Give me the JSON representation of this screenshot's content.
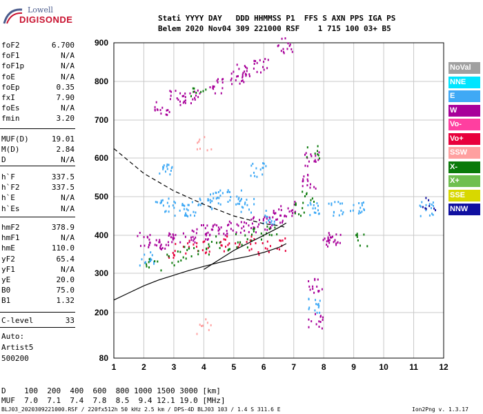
{
  "logo": {
    "top": "Lowell",
    "bottom": "DIGISONDE"
  },
  "header": {
    "line1": "Stati YYYY DAY   DDD HHMMSS P1  FFS S AXN PPS IGA PS",
    "line2": "Belem 2020 Nov04 309 221000 RSF    1 715 100 03+ B5"
  },
  "params": {
    "group1": [
      {
        "name": "foF2",
        "value": "6.700"
      },
      {
        "name": "foF1",
        "value": "N/A"
      },
      {
        "name": "foF1p",
        "value": "N/A"
      },
      {
        "name": "foE",
        "value": "N/A"
      },
      {
        "name": "foEp",
        "value": "0.35"
      },
      {
        "name": "fxI",
        "value": "7.90"
      },
      {
        "name": "foEs",
        "value": "N/A"
      },
      {
        "name": "fmin",
        "value": "3.20"
      }
    ],
    "group2": [
      {
        "name": "MUF(D)",
        "value": "19.01"
      },
      {
        "name": "M(D)",
        "value": "2.84"
      },
      {
        "name": "D",
        "value": "N/A"
      }
    ],
    "group3": [
      {
        "name": "h`F",
        "value": "337.5"
      },
      {
        "name": "h`F2",
        "value": "337.5"
      },
      {
        "name": "h`E",
        "value": "N/A"
      },
      {
        "name": "h`Es",
        "value": "N/A"
      }
    ],
    "group4": [
      {
        "name": "hmF2",
        "value": "378.9"
      },
      {
        "name": "hmF1",
        "value": "N/A"
      },
      {
        "name": "hmE",
        "value": "110.0"
      },
      {
        "name": "yF2",
        "value": "65.4"
      },
      {
        "name": "yF1",
        "value": "N/A"
      },
      {
        "name": "yE",
        "value": "20.0"
      },
      {
        "name": "B0",
        "value": "75.0"
      },
      {
        "name": "B1",
        "value": "1.32"
      }
    ],
    "clevel": {
      "name": "C-level",
      "value": "33"
    },
    "auto": [
      "Auto:",
      "Artist5",
      "500200"
    ]
  },
  "legend": [
    {
      "label": "NoVal",
      "bg": "#a0a0a0",
      "fg": "#ffffff"
    },
    {
      "label": "NNE",
      "bg": "#00e5ff",
      "fg": "#ffffff"
    },
    {
      "label": "E",
      "bg": "#3fa9f5",
      "fg": "#ffffff"
    },
    {
      "label": "W",
      "bg": "#a8009a",
      "fg": "#ffffff"
    },
    {
      "label": "Vo-",
      "bg": "#ff3fa0",
      "fg": "#ffffff"
    },
    {
      "label": "Vo+",
      "bg": "#e8003c",
      "fg": "#ffffff"
    },
    {
      "label": "SSW",
      "bg": "#ffa0a0",
      "fg": "#ffffff"
    },
    {
      "label": "X-",
      "bg": "#0a7a0a",
      "fg": "#ffffff"
    },
    {
      "label": "X+",
      "bg": "#6fbf4f",
      "fg": "#ffffff"
    },
    {
      "label": "SSE",
      "bg": "#d8d800",
      "fg": "#ffffff"
    },
    {
      "label": "NNW",
      "bg": "#1010a0",
      "fg": "#ffffff"
    }
  ],
  "chart_data": {
    "type": "scatter",
    "xlim": [
      1,
      12
    ],
    "ylim": [
      80,
      900
    ],
    "x_ticks": [
      1,
      2,
      3,
      4,
      5,
      6,
      7,
      8,
      9,
      10,
      11,
      12
    ],
    "y_ticks": [
      80,
      200,
      300,
      400,
      500,
      600,
      700,
      800,
      900
    ],
    "grid": true,
    "series": [
      {
        "name": "E",
        "color": "#3fa9f5",
        "points": [
          [
            2.1,
            340
          ],
          [
            2.6,
            480
          ],
          [
            2.7,
            575
          ],
          [
            3.2,
            470
          ],
          [
            3.6,
            470
          ],
          [
            4.0,
            490
          ],
          [
            4.4,
            500
          ],
          [
            5.0,
            500
          ],
          [
            5.4,
            480
          ],
          [
            6.1,
            450
          ],
          [
            7.6,
            470
          ],
          [
            8.4,
            470
          ],
          [
            9.1,
            470
          ],
          [
            11.4,
            470
          ],
          [
            7.7,
            220
          ],
          [
            5.8,
            570
          ]
        ]
      },
      {
        "name": "W",
        "color": "#a8009a",
        "points": [
          [
            2.0,
            390
          ],
          [
            2.5,
            380
          ],
          [
            3.0,
            390
          ],
          [
            3.5,
            400
          ],
          [
            4.0,
            410
          ],
          [
            4.5,
            420
          ],
          [
            5.0,
            420
          ],
          [
            5.5,
            430
          ],
          [
            6.0,
            430
          ],
          [
            6.5,
            450
          ],
          [
            6.8,
            470
          ],
          [
            7.5,
            540
          ],
          [
            7.6,
            600
          ],
          [
            8.3,
            390
          ],
          [
            2.6,
            730
          ],
          [
            3.1,
            760
          ],
          [
            3.6,
            760
          ],
          [
            4.4,
            790
          ],
          [
            5.1,
            810
          ],
          [
            5.3,
            830
          ],
          [
            5.9,
            845
          ],
          [
            6.7,
            895
          ],
          [
            7.7,
            270
          ],
          [
            7.7,
            180
          ],
          [
            8.2,
            390
          ]
        ]
      },
      {
        "name": "Vo+",
        "color": "#e8003c",
        "points": [
          [
            3.0,
            360
          ],
          [
            3.5,
            370
          ],
          [
            4.0,
            375
          ],
          [
            4.5,
            380
          ],
          [
            5.0,
            385
          ],
          [
            5.5,
            380
          ],
          [
            6.0,
            370
          ],
          [
            6.5,
            380
          ]
        ]
      },
      {
        "name": "SSW",
        "color": "#ffa0a0",
        "points": [
          [
            4.0,
            640
          ],
          [
            4.0,
            165
          ]
        ]
      },
      {
        "name": "X-",
        "color": "#0a7a0a",
        "points": [
          [
            2.3,
            330
          ],
          [
            3.0,
            340
          ],
          [
            3.5,
            360
          ],
          [
            4.0,
            370
          ],
          [
            4.6,
            380
          ],
          [
            5.2,
            390
          ],
          [
            5.8,
            400
          ],
          [
            6.3,
            410
          ],
          [
            7.2,
            470
          ],
          [
            7.5,
            500
          ],
          [
            7.6,
            620
          ],
          [
            9.2,
            390
          ],
          [
            3.8,
            775
          ]
        ]
      },
      {
        "name": "NNW",
        "color": "#1010a0",
        "points": [
          [
            11.5,
            480
          ]
        ]
      }
    ],
    "curves": [
      {
        "style": "dashed",
        "points": [
          [
            1,
            625
          ],
          [
            2,
            560
          ],
          [
            3,
            515
          ],
          [
            4,
            480
          ],
          [
            5,
            450
          ],
          [
            5.5,
            440
          ],
          [
            6,
            430
          ],
          [
            6.5,
            425
          ],
          [
            6.75,
            420
          ]
        ]
      },
      {
        "style": "solid",
        "points": [
          [
            1,
            232
          ],
          [
            1.5,
            250
          ],
          [
            2,
            268
          ],
          [
            2.5,
            283
          ],
          [
            3,
            295
          ],
          [
            3.5,
            307
          ],
          [
            4,
            318
          ],
          [
            4.5,
            328
          ],
          [
            5,
            337
          ],
          [
            5.5,
            345
          ],
          [
            6,
            355
          ],
          [
            6.5,
            368
          ],
          [
            6.75,
            378
          ]
        ]
      },
      {
        "style": "solid",
        "points": [
          [
            4,
            310
          ],
          [
            5,
            360
          ],
          [
            6,
            400
          ],
          [
            6.5,
            420
          ],
          [
            6.75,
            432
          ]
        ]
      }
    ]
  },
  "footer": {
    "line1": "D    100  200  400  600  800 1000 1500 3000 [km]",
    "line2": "MUF  7.0  7.1  7.4  7.8  8.5  9.4 12.1 19.0 [MHz]",
    "line3": "BLJ03_2020309221000.RSF / 220fx512h 50 kHz 2.5 km / DPS-4D BLJ03 103 / 1.4 S 311.6 E",
    "version": "Ion2Png v. 1.3.17"
  }
}
